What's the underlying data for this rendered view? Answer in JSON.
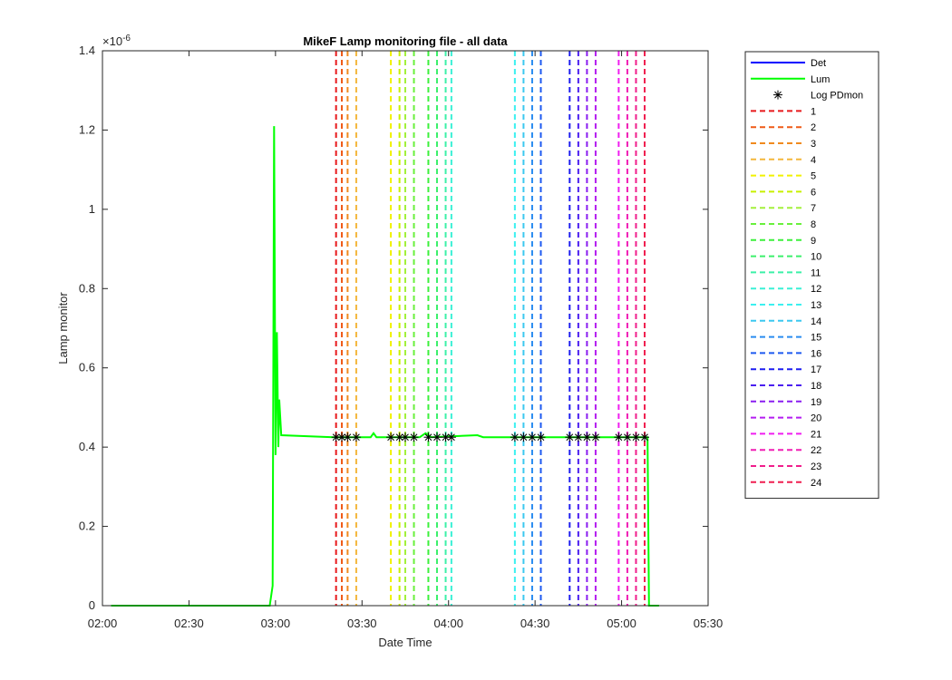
{
  "chart_data": {
    "type": "line",
    "title": "MikeF Lamp monitoring file - all data",
    "xlabel": "Date Time",
    "ylabel": "Lamp monitor",
    "y_exponent_label": "×10",
    "y_exponent_power": "-6",
    "xlim": [
      "02:00",
      "05:30"
    ],
    "ylim": [
      0,
      1.4
    ],
    "x_ticks": [
      "02:00",
      "02:30",
      "03:00",
      "03:30",
      "04:00",
      "04:30",
      "05:00",
      "05:30"
    ],
    "y_ticks": [
      {
        "value": 0,
        "label": "0"
      },
      {
        "value": 0.2,
        "label": "0.2"
      },
      {
        "value": 0.4,
        "label": "0.4"
      },
      {
        "value": 0.6,
        "label": "0.6"
      },
      {
        "value": 0.8,
        "label": "0.8"
      },
      {
        "value": 1.0,
        "label": "1"
      },
      {
        "value": 1.2,
        "label": "1.2"
      },
      {
        "value": 1.4,
        "label": "1.4"
      }
    ],
    "grid": false,
    "legend_position": "outside-right",
    "series": [
      {
        "name": "Det",
        "color": "#0000ff",
        "style": "solid",
        "points": []
      },
      {
        "name": "Lum",
        "color": "#00ff00",
        "style": "solid",
        "points": [
          [
            "02:03",
            0
          ],
          [
            "02:58",
            0
          ],
          [
            "02:59",
            0.05
          ],
          [
            "02:59.5",
            1.21
          ],
          [
            "03:00",
            0.38
          ],
          [
            "03:00.5",
            0.69
          ],
          [
            "03:01",
            0.4
          ],
          [
            "03:01.3",
            0.52
          ],
          [
            "03:02",
            0.43
          ],
          [
            "03:20",
            0.425
          ],
          [
            "03:33",
            0.425
          ],
          [
            "03:34",
            0.435
          ],
          [
            "03:35",
            0.425
          ],
          [
            "03:50",
            0.425
          ],
          [
            "03:52",
            0.435
          ],
          [
            "03:54",
            0.425
          ],
          [
            "04:10",
            0.43
          ],
          [
            "04:12",
            0.425
          ],
          [
            "04:20",
            0.425
          ],
          [
            "04:30",
            0.425
          ],
          [
            "05:05",
            0.425
          ],
          [
            "05:09",
            0.425
          ],
          [
            "05:09.5",
            0
          ],
          [
            "05:13",
            0
          ]
        ]
      },
      {
        "name": "Log PDmon",
        "color": "#000000",
        "style": "marker-star",
        "points": [
          [
            "03:21",
            0.425
          ],
          [
            "03:23",
            0.425
          ],
          [
            "03:25",
            0.425
          ],
          [
            "03:28",
            0.425
          ],
          [
            "03:40",
            0.425
          ],
          [
            "03:43",
            0.425
          ],
          [
            "03:45",
            0.425
          ],
          [
            "03:48",
            0.425
          ],
          [
            "03:53",
            0.425
          ],
          [
            "03:56",
            0.425
          ],
          [
            "03:59",
            0.425
          ],
          [
            "04:01",
            0.425
          ],
          [
            "04:23",
            0.425
          ],
          [
            "04:26",
            0.425
          ],
          [
            "04:29",
            0.425
          ],
          [
            "04:32",
            0.425
          ],
          [
            "04:42",
            0.425
          ],
          [
            "04:45",
            0.425
          ],
          [
            "04:48",
            0.425
          ],
          [
            "04:51",
            0.425
          ],
          [
            "04:59",
            0.425
          ],
          [
            "05:02",
            0.425
          ],
          [
            "05:05",
            0.425
          ],
          [
            "05:08",
            0.425
          ]
        ]
      }
    ],
    "vertical_lines": [
      {
        "name": "1",
        "x": "03:21",
        "color": "#e8191c"
      },
      {
        "name": "2",
        "x": "03:23",
        "color": "#ef5a17"
      },
      {
        "name": "3",
        "x": "03:25",
        "color": "#f08a1e"
      },
      {
        "name": "4",
        "x": "03:28",
        "color": "#f4b73c"
      },
      {
        "name": "5",
        "x": "03:40",
        "color": "#f2f200"
      },
      {
        "name": "6",
        "x": "03:43",
        "color": "#c8f000"
      },
      {
        "name": "7",
        "x": "03:45",
        "color": "#a3f03c"
      },
      {
        "name": "8",
        "x": "03:48",
        "color": "#69f03c"
      },
      {
        "name": "9",
        "x": "03:53",
        "color": "#3cf03c"
      },
      {
        "name": "10",
        "x": "03:56",
        "color": "#3cf06c"
      },
      {
        "name": "11",
        "x": "03:59",
        "color": "#3cf0a8"
      },
      {
        "name": "12",
        "x": "04:01",
        "color": "#3cf0d6"
      },
      {
        "name": "13",
        "x": "04:23",
        "color": "#3cf0f0"
      },
      {
        "name": "14",
        "x": "04:26",
        "color": "#3cc8f0"
      },
      {
        "name": "15",
        "x": "04:29",
        "color": "#2a8cf0"
      },
      {
        "name": "16",
        "x": "04:32",
        "color": "#1e5af0"
      },
      {
        "name": "17",
        "x": "04:42",
        "color": "#1e1ef0"
      },
      {
        "name": "18",
        "x": "04:45",
        "color": "#4b1ef0"
      },
      {
        "name": "19",
        "x": "04:48",
        "color": "#8a1ef0"
      },
      {
        "name": "20",
        "x": "04:51",
        "color": "#b41ef0"
      },
      {
        "name": "21",
        "x": "04:59",
        "color": "#f01ef0"
      },
      {
        "name": "22",
        "x": "05:02",
        "color": "#f01eb4"
      },
      {
        "name": "23",
        "x": "05:05",
        "color": "#f01e8c"
      },
      {
        "name": "24",
        "x": "05:08",
        "color": "#f01e50"
      }
    ]
  }
}
